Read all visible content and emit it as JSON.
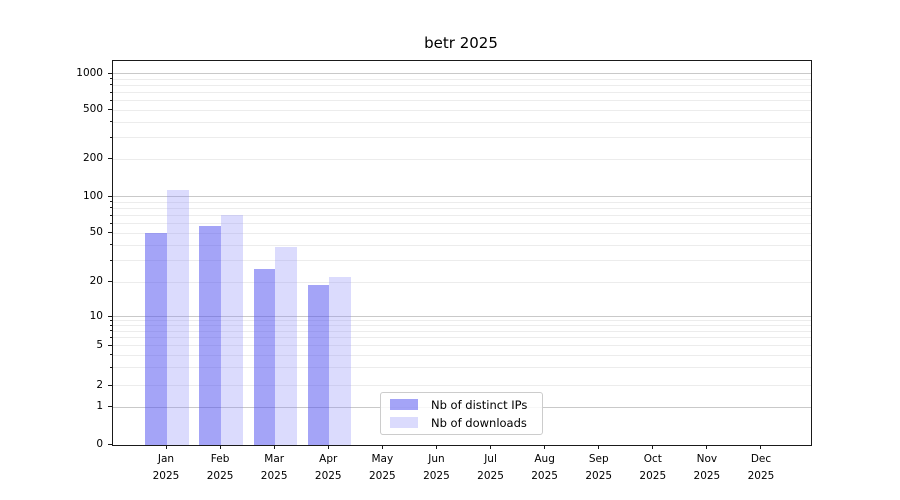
{
  "chart_data": {
    "type": "bar",
    "title": "betr 2025",
    "categories": [
      "Jan",
      "Feb",
      "Mar",
      "Apr",
      "May",
      "Jun",
      "Jul",
      "Aug",
      "Sep",
      "Oct",
      "Nov",
      "Dec"
    ],
    "year_label": "2025",
    "series": [
      {
        "name": "Nb of distinct IPs",
        "color": "#5050f0",
        "alpha": 0.52,
        "values": [
          51,
          58,
          26,
          19,
          0,
          0,
          0,
          0,
          0,
          0,
          0,
          0
        ]
      },
      {
        "name": "Nb of downloads",
        "color": "#8888f8",
        "alpha": 0.3,
        "values": [
          115,
          71,
          39,
          22,
          0,
          0,
          0,
          0,
          0,
          0,
          0,
          0
        ]
      }
    ],
    "xlabel": "",
    "ylabel": "",
    "yscale": "symlog",
    "ylim": [
      0,
      1000
    ],
    "yticks": [
      0,
      1,
      2,
      5,
      10,
      20,
      50,
      100,
      200,
      500,
      1000
    ],
    "major_grid_values": [
      1,
      10,
      100,
      1000
    ],
    "minor_grid_values": [
      2,
      3,
      4,
      5,
      6,
      7,
      8,
      9,
      20,
      30,
      40,
      50,
      60,
      70,
      80,
      90,
      200,
      300,
      400,
      500,
      600,
      700,
      800,
      900
    ],
    "grid": "on",
    "legend_position": "lower-center",
    "colors": {
      "major_grid": "#c9c9c9",
      "minor_grid": "#ececec",
      "axis": "#1a1a1a",
      "background": "#ffffff"
    }
  }
}
